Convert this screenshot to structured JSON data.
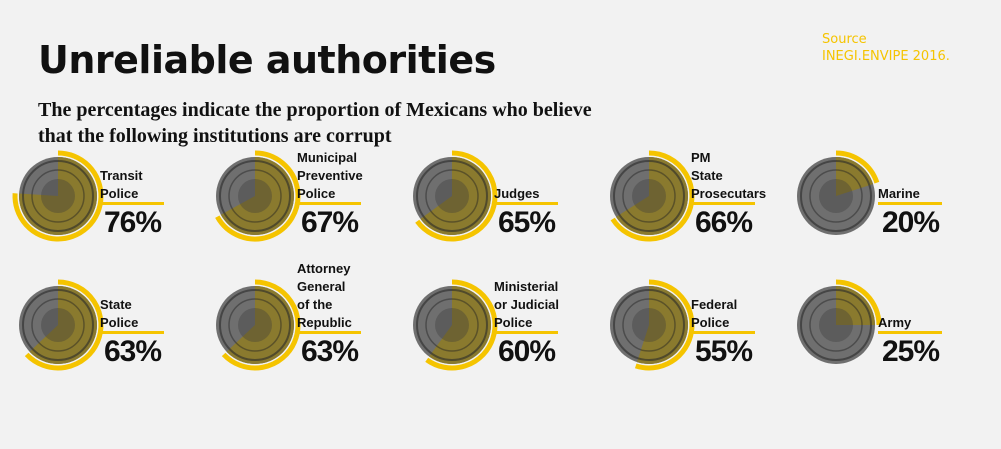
{
  "title": "Unreliable authorities",
  "subtitle": "The percentages indicate the proportion of Mexicans who believe that the following institutions are corrupt",
  "source": {
    "label": "Source",
    "text": "INEGI.ENVIPE 2016."
  },
  "colors": {
    "accent": "#f5c400",
    "coin_gold": "#8a7a2e",
    "coin_silver": "#6f6f6f",
    "text": "#111111",
    "background": "#f2f2f2"
  },
  "icon": "mexican-peso-coin-icon",
  "chart_data": {
    "type": "pie",
    "unit": "%",
    "title": "Unreliable authorities",
    "items": [
      {
        "label": "Transit\nPolice",
        "value": 76,
        "display": "76%"
      },
      {
        "label": "Municipal\nPreventive\nPolice",
        "value": 67,
        "display": "67%"
      },
      {
        "label": "Judges",
        "value": 65,
        "display": "65%"
      },
      {
        "label": "PM\nState\nProsecutars",
        "value": 66,
        "display": "66%"
      },
      {
        "label": "Marine",
        "value": 20,
        "display": "20%"
      },
      {
        "label": "State\nPolice",
        "value": 63,
        "display": "63%"
      },
      {
        "label": "Attorney\nGeneral\nof the\nRepublic",
        "value": 63,
        "display": "63%"
      },
      {
        "label": "Ministerial\nor Judicial\nPolice",
        "value": 60,
        "display": "60%"
      },
      {
        "label": "Federal\nPolice",
        "value": 55,
        "display": "55%"
      },
      {
        "label": "Army",
        "value": 25,
        "display": "25%"
      }
    ]
  }
}
